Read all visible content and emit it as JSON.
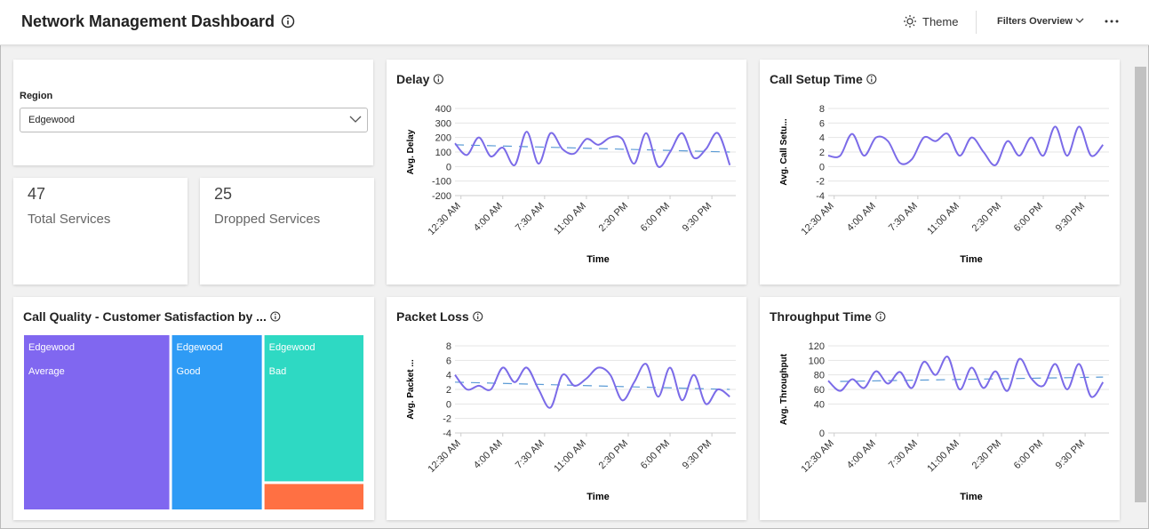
{
  "header": {
    "title": "Network Management Dashboard",
    "theme": "Theme",
    "filters": "Filters Overview"
  },
  "filters": {
    "region": {
      "label": "Region",
      "value": "Edgewood"
    }
  },
  "kpis": [
    {
      "value": 47,
      "label": "Total Services"
    },
    {
      "value": 25,
      "label": "Dropped Services"
    }
  ],
  "chart_data": [
    {
      "type": "treemap",
      "title": "Call Quality - Customer Satisfaction by ...",
      "categories": [
        "Edgewood",
        "Edgewood",
        "Edgewood",
        null
      ],
      "groups": [
        "Average",
        "Good",
        "Bad",
        null
      ],
      "values": [
        32,
        20,
        18,
        3.4
      ],
      "colors": [
        "#8067f0",
        "#2e9bf5",
        "#2ed9c3",
        "#ff7043"
      ]
    },
    {
      "type": "line",
      "title": "Delay",
      "x_label": "Time",
      "y_label": "Avg. Delay",
      "x": [
        0,
        1,
        2,
        3,
        4,
        5,
        6,
        7,
        8,
        9,
        10,
        11,
        12,
        13,
        14,
        15,
        16,
        17,
        18,
        19,
        20,
        21,
        22,
        23
      ],
      "series": [
        {
          "color": "#7b6be8",
          "values": [
            160,
            80,
            200,
            70,
            130,
            10,
            240,
            20,
            230,
            120,
            90,
            190,
            150,
            200,
            190,
            20,
            230,
            0,
            100,
            230,
            60,
            120,
            230,
            10
          ]
        }
      ],
      "trend": {
        "x": [
          0,
          23
        ],
        "values": [
          150,
          100
        ],
        "color": "#5b9bd5"
      },
      "xlim": [
        0,
        23.5
      ],
      "xticks": [
        {
          "value": 0.5,
          "label": "12:30 AM"
        },
        {
          "value": 4,
          "label": "4:00 AM"
        },
        {
          "value": 7.5,
          "label": "7:30 AM"
        },
        {
          "value": 11,
          "label": "11:00 AM"
        },
        {
          "value": 14.5,
          "label": "2:30 PM"
        },
        {
          "value": 18,
          "label": "6:00 PM"
        },
        {
          "value": 21.5,
          "label": "9:30 PM"
        }
      ],
      "ylim": [
        -200,
        400
      ],
      "yticks": [
        -200,
        -100,
        0,
        100,
        200,
        300,
        400
      ],
      "grid": true
    },
    {
      "type": "line",
      "title": "Call Setup Time",
      "x_label": "Time",
      "y_label": "Avg. Call Setu...",
      "x": [
        0,
        1,
        2,
        3,
        4,
        5,
        6,
        7,
        8,
        9,
        10,
        11,
        12,
        13,
        14,
        15,
        16,
        17,
        18,
        19,
        20,
        21,
        22,
        23
      ],
      "series": [
        {
          "color": "#7b6be8",
          "values": [
            1.5,
            1.5,
            4.5,
            1.5,
            4,
            3.5,
            0.5,
            1,
            4,
            3.5,
            4.5,
            1.5,
            4,
            2,
            0.2,
            3.5,
            1.5,
            4,
            1.5,
            5.5,
            1.5,
            5.5,
            1.5,
            3
          ]
        }
      ],
      "xlim": [
        0,
        23.5
      ],
      "xticks": [
        {
          "value": 0.5,
          "label": "12:30 AM"
        },
        {
          "value": 4,
          "label": "4:00 AM"
        },
        {
          "value": 7.5,
          "label": "7:30 AM"
        },
        {
          "value": 11,
          "label": "11:00 AM"
        },
        {
          "value": 14.5,
          "label": "2:30 PM"
        },
        {
          "value": 18,
          "label": "6:00 PM"
        },
        {
          "value": 21.5,
          "label": "9:30 PM"
        }
      ],
      "ylim": [
        -4,
        8
      ],
      "yticks": [
        -4,
        -2,
        0,
        2,
        4,
        6,
        8
      ],
      "grid": true
    },
    {
      "type": "line",
      "title": "Packet Loss",
      "x_label": "Time",
      "y_label": "Avg. Packet ...",
      "x": [
        0,
        1,
        2,
        3,
        4,
        5,
        6,
        7,
        8,
        9,
        10,
        11,
        12,
        13,
        14,
        15,
        16,
        17,
        18,
        19,
        20,
        21,
        22,
        23
      ],
      "series": [
        {
          "color": "#7b6be8",
          "values": [
            4,
            2,
            2.5,
            2,
            5,
            3,
            5,
            2,
            -0.5,
            4,
            2.5,
            3.5,
            5,
            4,
            0.5,
            3,
            5.5,
            1,
            5,
            0.5,
            4,
            0,
            2,
            1
          ]
        }
      ],
      "trend": {
        "x": [
          0,
          23
        ],
        "values": [
          3,
          2
        ],
        "color": "#5b9bd5"
      },
      "xlim": [
        0,
        23.5
      ],
      "xticks": [
        {
          "value": 0.5,
          "label": "12:30 AM"
        },
        {
          "value": 4,
          "label": "4:00 AM"
        },
        {
          "value": 7.5,
          "label": "7:30 AM"
        },
        {
          "value": 11,
          "label": "11:00 AM"
        },
        {
          "value": 14.5,
          "label": "2:30 PM"
        },
        {
          "value": 18,
          "label": "6:00 PM"
        },
        {
          "value": 21.5,
          "label": "9:30 PM"
        }
      ],
      "ylim": [
        -4,
        8
      ],
      "yticks": [
        -4,
        -2,
        0,
        2,
        4,
        6,
        8
      ],
      "grid": true
    },
    {
      "type": "line",
      "title": "Throughput Time",
      "x_label": "Time",
      "y_label": "Avg. Throughput",
      "x": [
        0,
        1,
        2,
        3,
        4,
        5,
        6,
        7,
        8,
        9,
        10,
        11,
        12,
        13,
        14,
        15,
        16,
        17,
        18,
        19,
        20,
        21,
        22,
        23
      ],
      "series": [
        {
          "color": "#7b6be8",
          "values": [
            72,
            58,
            74,
            62,
            85,
            68,
            84,
            62,
            98,
            80,
            105,
            60,
            90,
            62,
            85,
            58,
            102,
            75,
            65,
            95,
            60,
            95,
            50,
            70
          ]
        }
      ],
      "trend": {
        "x": [
          1,
          23
        ],
        "values": [
          71,
          77
        ],
        "color": "#5b9bd5"
      },
      "xlim": [
        0,
        23.5
      ],
      "xticks": [
        {
          "value": 0.5,
          "label": "12:30 AM"
        },
        {
          "value": 4,
          "label": "4:00 AM"
        },
        {
          "value": 7.5,
          "label": "7:30 AM"
        },
        {
          "value": 11,
          "label": "11:00 AM"
        },
        {
          "value": 14.5,
          "label": "2:30 PM"
        },
        {
          "value": 18,
          "label": "6:00 PM"
        },
        {
          "value": 21.5,
          "label": "9:30 PM"
        }
      ],
      "ylim": [
        0,
        120
      ],
      "yticks": [
        0,
        40,
        60,
        80,
        100,
        120
      ],
      "grid": true
    }
  ]
}
